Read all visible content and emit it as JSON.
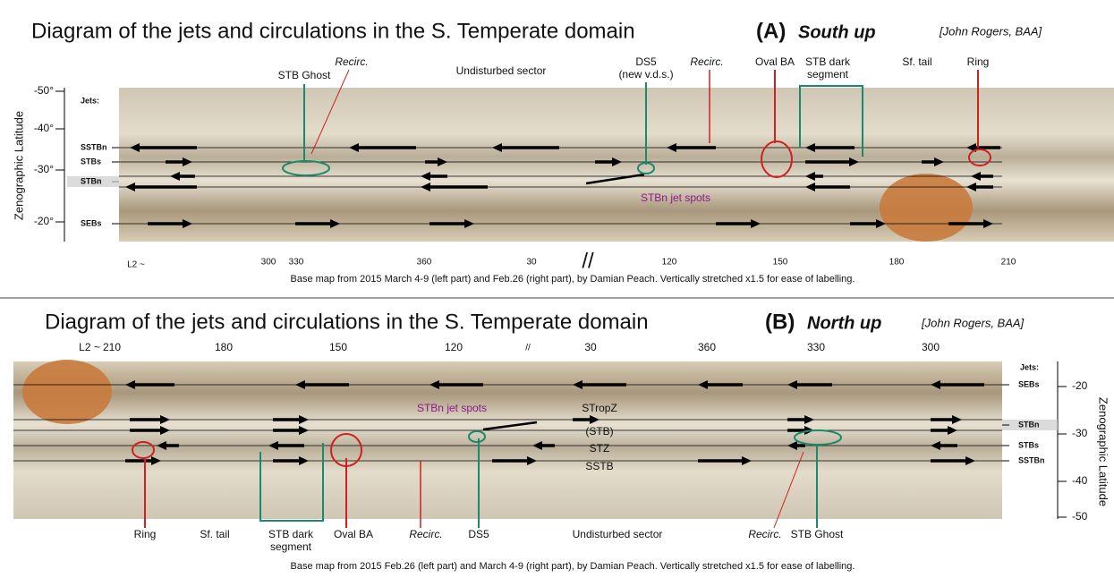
{
  "panel_a": {
    "title": "Diagram of the jets and circulations in the S. Temperate domain",
    "panel_label": "(A)",
    "orientation": "South up",
    "credit": "[John Rogers, BAA]",
    "y_axis_label": "Zenographic Latitude",
    "lat_ticks": [
      "-50°",
      "-40°",
      "-30°",
      "-20°"
    ],
    "jets_header": "Jets:",
    "jets": [
      "SSTBn",
      "STBs",
      "STBn",
      "SEBs"
    ],
    "lon_prefix": "L2 ~",
    "lon_ticks": [
      "300",
      "330",
      "360",
      "30",
      "//",
      "120",
      "150",
      "180",
      "210"
    ],
    "features": [
      "STB Ghost",
      "Recirc.",
      "Undisturbed sector",
      "DS5",
      "(new v.d.s.)",
      "Recirc.",
      "Oval BA",
      "STB dark",
      "segment",
      "Sf. tail",
      "Ring"
    ],
    "spots": "STBn jet spots",
    "caption": "Base map from 2015 March 4-9 (left part) and Feb.26 (right part), by Damian Peach.  Vertically stretched x1.5 for ease of labelling."
  },
  "panel_b": {
    "title": "Diagram of the jets and circulations in the S. Temperate domain",
    "panel_label": "(B)",
    "orientation": "North up",
    "credit": "[John Rogers, BAA]",
    "y_axis_label": "Zenographic Latitude",
    "lat_ticks": [
      "-20",
      "-30",
      "-40",
      "-50"
    ],
    "jets_header": "Jets:",
    "jets": [
      "SEBs",
      "STBn",
      "STBs",
      "SSTBn"
    ],
    "lon_prefix": "L2 ~",
    "lon_ticks": [
      "210",
      "180",
      "150",
      "120",
      "//",
      "30",
      "360",
      "330",
      "300"
    ],
    "zones": [
      "STropZ",
      "(STB)",
      "STZ",
      "SSTB"
    ],
    "features": [
      "Ring",
      "Sf. tail",
      "STB dark",
      "segment",
      "Oval BA",
      "Recirc.",
      "DS5",
      "Undisturbed sector",
      "Recirc.",
      "STB Ghost"
    ],
    "spots": "STBn jet spots",
    "caption": "Base map from 2015 Feb.26 (left part) and March 4-9 (right part), by Damian Peach.  Vertically stretched x1.5 for ease of labelling."
  }
}
